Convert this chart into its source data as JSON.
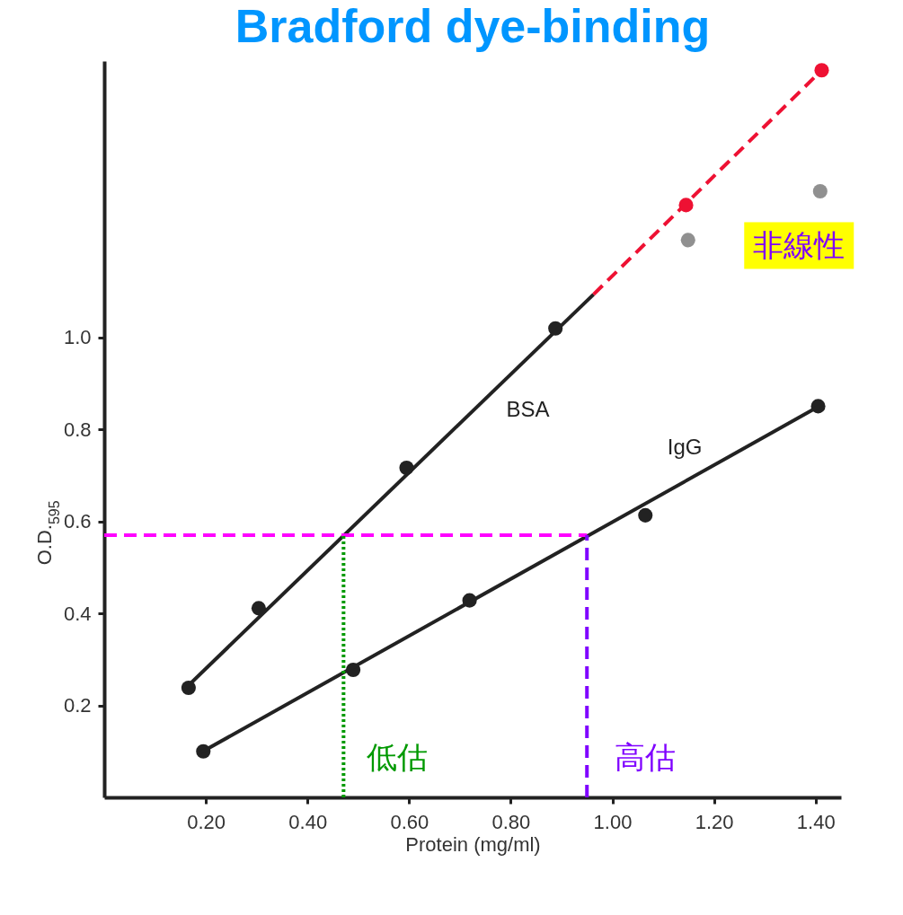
{
  "chart_data": {
    "type": "scatter",
    "title": "Bradford dye-binding",
    "xlabel": "Protein (mg/ml)",
    "ylabel": "O.D.$_{595}$",
    "xlim": [
      0,
      1.45
    ],
    "ylim": [
      0,
      1.6
    ],
    "xticks": [
      {
        "value": 0.2,
        "label": "0.20"
      },
      {
        "value": 0.4,
        "label": "0.40"
      },
      {
        "value": 0.6,
        "label": "0.60"
      },
      {
        "value": 0.8,
        "label": "0.80"
      },
      {
        "value": 1.0,
        "label": "1.00"
      },
      {
        "value": 1.2,
        "label": "1.20"
      },
      {
        "value": 1.4,
        "label": "1.40"
      }
    ],
    "yticks": [
      0.2,
      0.4,
      0.6,
      0.8,
      {
        "value": 1.0,
        "label": "1.0"
      }
    ],
    "grid": false,
    "marker": "circle",
    "series": [
      {
        "color": "#222222",
        "x": [
          0.166,
          0.304,
          0.595,
          0.888
        ],
        "values": [
          0.238,
          0.411,
          0.716,
          1.019
        ]
      },
      {
        "type": "line",
        "color": "#222222",
        "marker": "none",
        "line_style": "solid",
        "x": [
          0.158,
          0.963
        ],
        "values": [
          0.235,
          1.093
        ]
      },
      {
        "color": "#222222",
        "x": [
          0.195,
          0.49,
          0.719,
          1.065,
          1.405
        ],
        "values": [
          0.1,
          0.277,
          0.428,
          0.613,
          0.85
        ]
      },
      {
        "type": "line",
        "color": "#222222",
        "marker": "none",
        "line_style": "solid",
        "x": [
          0.191,
          1.412
        ],
        "values": [
          0.098,
          0.853
        ]
      },
      {
        "type": "line",
        "color": "#ee1133",
        "marker": "none",
        "line_style": "dashed",
        "x": [
          0.963,
          1.412
        ],
        "values": [
          1.093,
          1.58
        ]
      },
      {
        "color": "#ee1133",
        "x": [
          1.145,
          1.412
        ],
        "values": [
          1.287,
          1.58
        ]
      },
      {
        "color": "#909090",
        "x": [
          1.149,
          1.409
        ],
        "values": [
          1.211,
          1.317
        ]
      },
      {
        "type": "line",
        "color": "#ff00ff",
        "marker": "none",
        "line_style": "dashed",
        "x": [
          0,
          0.95
        ],
        "values": [
          0.57,
          0.57
        ]
      },
      {
        "type": "line",
        "color": "#009900",
        "marker": "none",
        "line_style": "dotted",
        "x": [
          0.471,
          0.471
        ],
        "values": [
          0,
          0.57
        ]
      },
      {
        "type": "line",
        "color": "#7f00ff",
        "marker": "none",
        "line_style": "dashed",
        "x": [
          0.95,
          0.95
        ],
        "values": [
          0,
          0.57
        ]
      }
    ],
    "annotations": [
      "BSA",
      "IgG",
      "低估",
      "高估",
      "非線性"
    ]
  }
}
